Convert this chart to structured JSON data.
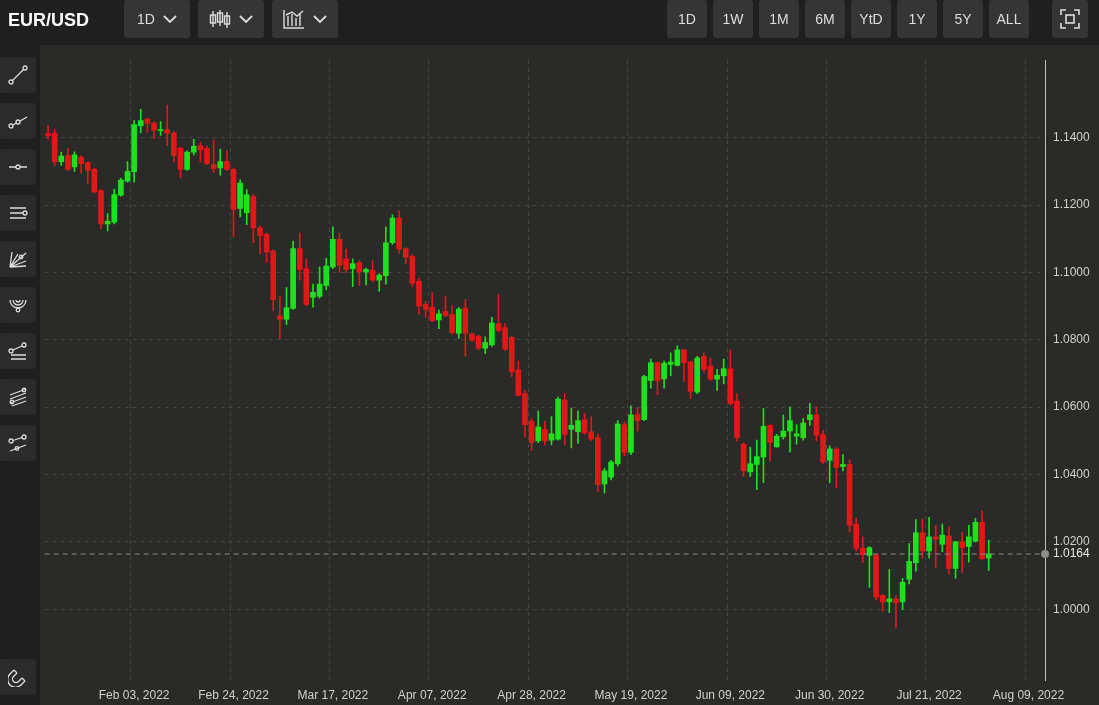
{
  "chart_data": {
    "type": "candlestick",
    "title": "EUR/USD",
    "annotations": [
      "1D",
      "1D",
      "1W",
      "1M",
      "6M",
      "YtD",
      "1Y",
      "5Y",
      "ALL"
    ],
    "categories": [
      null,
      null,
      null,
      null,
      null,
      null,
      null,
      null,
      null,
      null,
      null,
      null,
      null,
      "Feb 03, 2022",
      null,
      null,
      null,
      null,
      null,
      null,
      null,
      null,
      null,
      null,
      null,
      null,
      null,
      null,
      "Feb 24, 2022",
      null,
      null,
      null,
      null,
      null,
      null,
      null,
      null,
      null,
      null,
      null,
      null,
      null,
      null,
      "Mar 17, 2022",
      null,
      null,
      null,
      null,
      null,
      null,
      null,
      null,
      null,
      null,
      null,
      null,
      null,
      null,
      "Apr 07, 2022",
      null,
      null,
      null,
      null,
      null,
      null,
      null,
      null,
      null,
      null,
      null,
      null,
      null,
      null,
      "Apr 28, 2022",
      null,
      null,
      null,
      null,
      null,
      null,
      null,
      null,
      null,
      null,
      null,
      null,
      null,
      null,
      "May 19, 2022",
      null,
      null,
      null,
      null,
      null,
      null,
      null,
      null,
      null,
      null,
      null,
      null,
      null,
      null,
      "Jun 09, 2022",
      null,
      null,
      null,
      null,
      null,
      null,
      null,
      null,
      null,
      null,
      null,
      null,
      null,
      null,
      "Jun 30, 2022",
      null,
      null,
      null,
      null,
      null,
      null,
      null,
      null,
      null,
      null,
      null,
      null,
      null,
      null,
      "Jul 21, 2022",
      null,
      null,
      null,
      null,
      null,
      null,
      null,
      null,
      null,
      null,
      null,
      null,
      null,
      null,
      "Aug 09, 2022",
      null,
      null
    ],
    "ohlc": [
      [
        1.1412,
        1.1436,
        1.1396,
        1.1406
      ],
      [
        1.1414,
        1.1424,
        1.1316,
        1.1328
      ],
      [
        1.1329,
        1.1357,
        1.1318,
        1.1345
      ],
      [
        1.1347,
        1.1368,
        1.1303,
        1.1306
      ],
      [
        1.1313,
        1.1358,
        1.13,
        1.1349
      ],
      [
        1.1342,
        1.1347,
        1.1294,
        1.1323
      ],
      [
        1.1326,
        1.1329,
        1.1265,
        1.1303
      ],
      [
        1.1306,
        1.131,
        1.1235,
        1.1239
      ],
      [
        1.1243,
        1.1246,
        1.1129,
        1.1144
      ],
      [
        1.1144,
        1.1175,
        1.1123,
        1.1152
      ],
      [
        1.1149,
        1.1247,
        1.1144,
        1.1231
      ],
      [
        1.1229,
        1.1279,
        1.1226,
        1.1274
      ],
      [
        1.1271,
        1.1329,
        1.1268,
        1.13
      ],
      [
        1.1299,
        1.1451,
        1.1268,
        1.1439
      ],
      [
        1.1436,
        1.1484,
        1.1414,
        1.1451
      ],
      [
        1.1455,
        1.1458,
        1.1416,
        1.1442
      ],
      [
        1.1443,
        1.1448,
        1.1397,
        1.1422
      ],
      [
        1.1421,
        1.1448,
        1.1407,
        1.1424
      ],
      [
        1.1424,
        1.1497,
        1.1376,
        1.1413
      ],
      [
        1.1414,
        1.1419,
        1.1329,
        1.1347
      ],
      [
        1.1368,
        1.1371,
        1.1281,
        1.1306
      ],
      [
        1.1306,
        1.1361,
        1.1303,
        1.1357
      ],
      [
        1.1357,
        1.1395,
        1.1349,
        1.1374
      ],
      [
        1.1376,
        1.1386,
        1.1328,
        1.1364
      ],
      [
        1.1368,
        1.1376,
        1.132,
        1.1323
      ],
      [
        1.132,
        1.1393,
        1.1297,
        1.1308
      ],
      [
        1.131,
        1.1366,
        1.1289,
        1.1329
      ],
      [
        1.1329,
        1.1361,
        1.1303,
        1.1306
      ],
      [
        1.1306,
        1.131,
        1.1105,
        1.1187
      ],
      [
        1.119,
        1.1275,
        1.1165,
        1.1265
      ],
      [
        1.1177,
        1.1245,
        1.1142,
        1.123
      ],
      [
        1.1225,
        1.1232,
        1.1088,
        1.1132
      ],
      [
        1.1132,
        1.1139,
        1.1055,
        1.111
      ],
      [
        1.1113,
        1.1117,
        1.103,
        1.1061
      ],
      [
        1.1064,
        1.1067,
        1.0886,
        1.0919
      ],
      [
        1.0871,
        1.0929,
        1.0803,
        1.0861
      ],
      [
        1.0861,
        1.0955,
        1.0845,
        1.0895
      ],
      [
        1.0893,
        1.1093,
        1.089,
        1.1071
      ],
      [
        1.1071,
        1.1117,
        1.0977,
        1.1009
      ],
      [
        1.1011,
        1.104,
        1.09,
        1.0905
      ],
      [
        1.0926,
        1.0965,
        1.0897,
        1.0941
      ],
      [
        1.0929,
        1.1016,
        1.0924,
        1.0965
      ],
      [
        1.0961,
        1.1042,
        1.0948,
        1.1019
      ],
      [
        1.1016,
        1.1135,
        1.1011,
        1.1098
      ],
      [
        1.1098,
        1.1117,
        1.1001,
        1.1021
      ],
      [
        1.104,
        1.1069,
        1.1,
        1.1009
      ],
      [
        1.1011,
        1.104,
        1.0958,
        1.1026
      ],
      [
        1.1029,
        1.1035,
        1.0961,
        1.1001
      ],
      [
        1.1001,
        1.1013,
        1.0963,
        1.1009
      ],
      [
        1.1006,
        1.1035,
        1.0972,
        1.0977
      ],
      [
        1.0977,
        1.0997,
        1.0944,
        1.0992
      ],
      [
        1.099,
        1.1135,
        1.0965,
        1.1088
      ],
      [
        1.1088,
        1.1171,
        1.1083,
        1.1161
      ],
      [
        1.1161,
        1.1183,
        1.1057,
        1.1069
      ],
      [
        1.1071,
        1.1074,
        1.1026,
        1.1045
      ],
      [
        1.1048,
        1.1052,
        1.0958,
        1.0968
      ],
      [
        1.0974,
        1.0984,
        1.0876,
        1.09
      ],
      [
        1.0905,
        1.0914,
        1.0866,
        1.089
      ],
      [
        1.0896,
        1.094,
        1.0853,
        1.0857
      ],
      [
        1.0859,
        1.0888,
        1.0833,
        1.0877
      ],
      [
        1.0884,
        1.093,
        1.0869,
        1.0872
      ],
      [
        1.0875,
        1.0901,
        1.0817,
        1.0821
      ],
      [
        1.0819,
        1.0896,
        1.0804,
        1.0891
      ],
      [
        1.0894,
        1.092,
        1.0751,
        1.0819
      ],
      [
        1.0817,
        1.0821,
        1.0795,
        1.0799
      ],
      [
        1.0811,
        1.0814,
        1.077,
        1.0775
      ],
      [
        1.0775,
        1.0809,
        1.0759,
        1.0792
      ],
      [
        1.0785,
        1.0867,
        1.078,
        1.085
      ],
      [
        1.0848,
        1.0935,
        1.0824,
        1.0828
      ],
      [
        1.0836,
        1.0848,
        1.0768,
        1.0772
      ],
      [
        1.0807,
        1.0811,
        1.0691,
        1.0705
      ],
      [
        1.0711,
        1.0737,
        1.0633,
        1.0635
      ],
      [
        1.064,
        1.065,
        1.0512,
        1.0548
      ],
      [
        1.0558,
        1.0566,
        1.0471,
        1.0495
      ],
      [
        1.05,
        1.0589,
        1.0495,
        1.0541
      ],
      [
        1.0534,
        1.0558,
        1.0488,
        1.05
      ],
      [
        1.0502,
        1.0572,
        1.0488,
        1.0521
      ],
      [
        1.0505,
        1.063,
        1.0502,
        1.0624
      ],
      [
        1.0621,
        1.064,
        1.0488,
        1.0519
      ],
      [
        1.0534,
        1.0597,
        1.0479,
        1.0546
      ],
      [
        1.0527,
        1.0589,
        1.0492,
        1.056
      ],
      [
        1.0563,
        1.0582,
        1.0519,
        1.0524
      ],
      [
        1.0527,
        1.0572,
        1.05,
        1.0505
      ],
      [
        1.051,
        1.0521,
        1.035,
        1.037
      ],
      [
        1.0372,
        1.0418,
        1.0345,
        1.0411
      ],
      [
        1.0392,
        1.0442,
        1.0384,
        1.0437
      ],
      [
        1.0432,
        1.056,
        1.0425,
        1.055
      ],
      [
        1.0548,
        1.0556,
        1.0456,
        1.0466
      ],
      [
        1.0466,
        1.0604,
        1.0459,
        1.0577
      ],
      [
        1.0579,
        1.0598,
        1.0529,
        1.056
      ],
      [
        1.0563,
        1.0695,
        1.056,
        1.0691
      ],
      [
        1.0679,
        1.0743,
        1.0656,
        1.0732
      ],
      [
        1.0732,
        1.0734,
        1.0637,
        1.0679
      ],
      [
        1.0684,
        1.0737,
        1.0656,
        1.073
      ],
      [
        1.0727,
        1.0761,
        1.0693,
        1.0734
      ],
      [
        1.0724,
        1.0782,
        1.0722,
        1.077
      ],
      [
        1.077,
        1.0772,
        1.0676,
        1.0732
      ],
      [
        1.0734,
        1.0737,
        1.0625,
        1.0647
      ],
      [
        1.0645,
        1.0751,
        1.064,
        1.0746
      ],
      [
        1.0751,
        1.0761,
        1.0703,
        1.0712
      ],
      [
        1.0722,
        1.0746,
        1.0679,
        1.0683
      ],
      [
        1.0683,
        1.0712,
        1.065,
        1.0695
      ],
      [
        1.0693,
        1.0743,
        1.0669,
        1.0714
      ],
      [
        1.0714,
        1.077,
        1.0606,
        1.0611
      ],
      [
        1.0618,
        1.064,
        1.05,
        1.051
      ],
      [
        1.049,
        1.0495,
        1.0394,
        1.0411
      ],
      [
        1.0408,
        1.0481,
        1.0394,
        1.0432
      ],
      [
        1.043,
        1.0502,
        1.0355,
        1.0453
      ],
      [
        1.0452,
        1.0596,
        1.0376,
        1.0543
      ],
      [
        1.0546,
        1.0548,
        1.044,
        1.0495
      ],
      [
        1.0482,
        1.0519,
        1.0481,
        1.0514
      ],
      [
        1.0512,
        1.0577,
        1.0505,
        1.0529
      ],
      [
        1.0529,
        1.0601,
        1.0466,
        1.056
      ],
      [
        1.0514,
        1.0548,
        1.049,
        1.0521
      ],
      [
        1.0509,
        1.0567,
        1.0502,
        1.0553
      ],
      [
        1.0563,
        1.0611,
        1.0546,
        1.0577
      ],
      [
        1.0577,
        1.0601,
        1.05,
        1.0517
      ],
      [
        1.0519,
        1.0531,
        1.0432,
        1.0437
      ],
      [
        1.0442,
        1.0485,
        1.0376,
        1.0476
      ],
      [
        1.0476,
        1.048,
        1.036,
        1.0421
      ],
      [
        1.0424,
        1.0459,
        1.0411,
        1.043
      ],
      [
        1.043,
        1.0444,
        1.0229,
        1.0249
      ],
      [
        1.0253,
        1.027,
        1.0173,
        1.0181
      ],
      [
        1.0181,
        1.0215,
        1.0138,
        1.0162
      ],
      [
        1.016,
        1.0186,
        1.0065,
        1.0183
      ],
      [
        1.0162,
        1.0164,
        1.0028,
        1.0036
      ],
      [
        1.0041,
        1.0044,
        0.9993,
        1.0022
      ],
      [
        1.0022,
        1.0118,
        0.999,
        1.0031
      ],
      [
        1.0031,
        1.0041,
        0.9944,
        1.0019
      ],
      [
        1.0022,
        1.0092,
        0.9999,
        1.008
      ],
      [
        1.0089,
        1.0195,
        1.0075,
        1.0142
      ],
      [
        1.0138,
        1.0266,
        1.0113,
        1.0227
      ],
      [
        1.0227,
        1.0268,
        1.0152,
        1.0173
      ],
      [
        1.0173,
        1.0273,
        1.0152,
        1.0215
      ],
      [
        1.0215,
        1.0249,
        1.0123,
        1.0208
      ],
      [
        1.0193,
        1.0253,
        1.0171,
        1.022
      ],
      [
        1.0218,
        1.0244,
        1.0104,
        1.0121
      ],
      [
        1.0121,
        1.0202,
        1.0092,
        1.02
      ],
      [
        1.02,
        1.0229,
        1.0109,
        1.0183
      ],
      [
        1.0186,
        1.0249,
        1.014,
        1.0215
      ],
      [
        1.0202,
        1.027,
        1.02,
        1.0258
      ],
      [
        1.0258,
        1.0292,
        1.0147,
        1.015
      ],
      [
        1.0152,
        1.0205,
        1.0115,
        1.0164
      ],
      null,
      null,
      null,
      null,
      null,
      null,
      null,
      null
    ],
    "colors": [
      "#e01818",
      "#e01818",
      "#1ee01e",
      "#e01818",
      "#1ee01e",
      "#e01818",
      "#e01818",
      "#e01818",
      "#e01818",
      "#1ee01e",
      "#1ee01e",
      "#1ee01e",
      "#1ee01e",
      "#1ee01e",
      "#1ee01e",
      "#e01818",
      "#e01818",
      "#1ee01e",
      "#e01818",
      "#e01818",
      "#e01818",
      "#1ee01e",
      "#1ee01e",
      "#e01818",
      "#e01818",
      "#e01818",
      "#1ee01e",
      "#e01818",
      "#e01818",
      "#1ee01e",
      "#1ee01e",
      "#e01818",
      "#e01818",
      "#e01818",
      "#e01818",
      "#e01818",
      "#1ee01e",
      "#1ee01e",
      "#e01818",
      "#e01818",
      "#1ee01e",
      "#1ee01e",
      "#1ee01e",
      "#1ee01e",
      "#e01818",
      "#e01818",
      "#1ee01e",
      "#e01818",
      "#1ee01e",
      "#e01818",
      "#1ee01e",
      "#1ee01e",
      "#1ee01e",
      "#e01818",
      "#e01818",
      "#e01818",
      "#e01818",
      "#e01818",
      "#e01818",
      "#1ee01e",
      "#e01818",
      "#e01818",
      "#1ee01e",
      "#e01818",
      "#e01818",
      "#e01818",
      "#1ee01e",
      "#1ee01e",
      "#e01818",
      "#e01818",
      "#e01818",
      "#e01818",
      "#e01818",
      "#e01818",
      "#1ee01e",
      "#e01818",
      "#1ee01e",
      "#1ee01e",
      "#e01818",
      "#1ee01e",
      "#1ee01e",
      "#e01818",
      "#e01818",
      "#e01818",
      "#1ee01e",
      "#1ee01e",
      "#1ee01e",
      "#e01818",
      "#1ee01e",
      "#e01818",
      "#1ee01e",
      "#1ee01e",
      "#e01818",
      "#1ee01e",
      "#1ee01e",
      "#1ee01e",
      "#e01818",
      "#e01818",
      "#1ee01e",
      "#e01818",
      "#e01818",
      "#1ee01e",
      "#1ee01e",
      "#e01818",
      "#e01818",
      "#e01818",
      "#1ee01e",
      "#1ee01e",
      "#1ee01e",
      "#e01818",
      "#1ee01e",
      "#1ee01e",
      "#1ee01e",
      "#1ee01e",
      "#1ee01e",
      "#1ee01e",
      "#e01818",
      "#e01818",
      "#1ee01e",
      "#e01818",
      "#1ee01e",
      "#e01818",
      "#e01818",
      "#e01818",
      "#1ee01e",
      "#e01818",
      "#e01818",
      "#1ee01e",
      "#e01818",
      "#1ee01e",
      "#1ee01e",
      "#1ee01e",
      "#e01818",
      "#1ee01e",
      "#e01818",
      "#1ee01e",
      "#e01818",
      "#1ee01e",
      "#e01818",
      "#1ee01e",
      "#1ee01e",
      "#e01818",
      "#1ee01e",
      null,
      null,
      null,
      null,
      null,
      null,
      null,
      null
    ],
    "ylim": [
      0.979,
      1.163
    ],
    "yticks": [
      {
        "value": 1.0,
        "label": "1.0000"
      },
      {
        "value": 1.02,
        "label": "1.0200"
      },
      {
        "value": 1.04,
        "label": "1.0400"
      },
      {
        "value": 1.06,
        "label": "1.0600"
      },
      {
        "value": 1.08,
        "label": "1.0800"
      },
      {
        "value": 1.1,
        "label": "1.1000"
      },
      {
        "value": 1.12,
        "label": "1.1200"
      },
      {
        "value": 1.14,
        "label": "1.1400"
      }
    ],
    "grid": true,
    "ref_lines": [
      {
        "axis": "y",
        "value": 1.0164,
        "label": "1.0164",
        "color": "#8c8c8c",
        "line_style": "dashed"
      }
    ]
  }
}
